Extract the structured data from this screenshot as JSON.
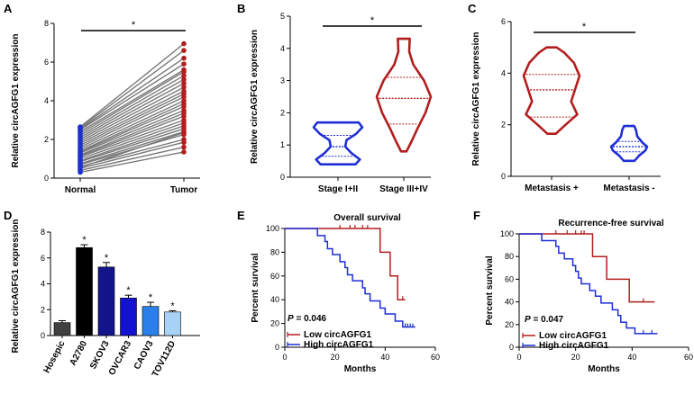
{
  "colors": {
    "blue": "#1f2fd6",
    "red": "#b21e1e",
    "axis": "#000000",
    "paired_line": "#7a7a7a",
    "bar_colors": [
      "#404040",
      "#000000",
      "#14148a",
      "#1212d0",
      "#2a7fe8",
      "#a8d2f5"
    ]
  },
  "chart_data": [
    {
      "panel": "A",
      "type": "scatter",
      "subtype": "paired before-after",
      "title": "",
      "xlabel": "",
      "ylabel": "Relative circAGFG1 expression",
      "categories": [
        "Normal",
        "Tumor"
      ],
      "ylim": [
        0,
        8
      ],
      "yticks": [
        0,
        2,
        4,
        6,
        8
      ],
      "significance": "*",
      "pairs": [
        [
          0.3,
          1.35
        ],
        [
          0.4,
          1.6
        ],
        [
          0.5,
          1.85
        ],
        [
          0.6,
          2.0
        ],
        [
          0.7,
          2.25
        ],
        [
          0.75,
          2.4
        ],
        [
          0.85,
          2.55
        ],
        [
          0.9,
          2.7
        ],
        [
          1.0,
          2.85
        ],
        [
          1.1,
          3.0
        ],
        [
          1.15,
          3.2
        ],
        [
          1.2,
          3.35
        ],
        [
          1.3,
          3.5
        ],
        [
          1.35,
          3.7
        ],
        [
          1.4,
          3.85
        ],
        [
          1.5,
          4.0
        ],
        [
          1.6,
          4.2
        ],
        [
          1.7,
          4.35
        ],
        [
          1.8,
          4.5
        ],
        [
          1.9,
          4.7
        ],
        [
          2.0,
          4.9
        ],
        [
          2.1,
          5.1
        ],
        [
          2.2,
          5.3
        ],
        [
          2.3,
          5.5
        ],
        [
          2.4,
          5.6
        ],
        [
          2.5,
          5.9
        ],
        [
          2.55,
          6.2
        ],
        [
          2.6,
          6.6
        ],
        [
          2.65,
          6.95
        ],
        [
          0.55,
          2.35
        ]
      ]
    },
    {
      "panel": "B",
      "type": "violin",
      "title": "",
      "ylabel": "Relative circAGFG1 expression",
      "categories": [
        "Stage I+II",
        "Stage III+IV"
      ],
      "ylim": [
        0,
        5
      ],
      "yticks": [
        0,
        1,
        2,
        3,
        4,
        5
      ],
      "significance": "*",
      "series": [
        {
          "name": "Stage I+II",
          "min": 0.4,
          "q1": 0.65,
          "median": 0.95,
          "q3": 1.3,
          "max": 1.7,
          "profile": [
            [
              0.4,
              0.72
            ],
            [
              0.55,
              0.9
            ],
            [
              0.75,
              0.55
            ],
            [
              0.95,
              0.3
            ],
            [
              1.15,
              0.35
            ],
            [
              1.35,
              0.75
            ],
            [
              1.55,
              1.0
            ],
            [
              1.7,
              0.85
            ]
          ]
        },
        {
          "name": "Stage III+IV",
          "min": 0.8,
          "q1": 1.65,
          "median": 2.45,
          "q3": 3.1,
          "max": 4.3,
          "profile": [
            [
              0.8,
              0.1
            ],
            [
              1.1,
              0.28
            ],
            [
              1.5,
              0.5
            ],
            [
              2.0,
              0.8
            ],
            [
              2.5,
              1.0
            ],
            [
              3.0,
              0.75
            ],
            [
              3.5,
              0.35
            ],
            [
              3.9,
              0.2
            ],
            [
              4.3,
              0.22
            ]
          ]
        }
      ]
    },
    {
      "panel": "C",
      "type": "violin",
      "title": "",
      "ylabel": "Relative circAGFG1 expression",
      "categories": [
        "Metastasis +",
        "Metastasis -"
      ],
      "ylim": [
        0,
        6
      ],
      "yticks": [
        0,
        2,
        4,
        6
      ],
      "significance": "*",
      "series": [
        {
          "name": "Metastasis +",
          "min": 1.65,
          "q1": 2.3,
          "median": 3.35,
          "q3": 3.95,
          "max": 5.0,
          "profile": [
            [
              1.65,
              0.15
            ],
            [
              2.0,
              0.5
            ],
            [
              2.4,
              0.92
            ],
            [
              2.9,
              0.7
            ],
            [
              3.4,
              0.85
            ],
            [
              3.9,
              1.0
            ],
            [
              4.4,
              0.8
            ],
            [
              4.8,
              0.45
            ],
            [
              5.0,
              0.18
            ]
          ]
        },
        {
          "name": "Metastasis -",
          "min": 0.6,
          "q1": 0.95,
          "median": 1.15,
          "q3": 1.35,
          "max": 1.95,
          "profile": [
            [
              0.6,
              0.3
            ],
            [
              0.8,
              0.55
            ],
            [
              1.0,
              0.9
            ],
            [
              1.15,
              1.0
            ],
            [
              1.3,
              0.75
            ],
            [
              1.55,
              0.45
            ],
            [
              1.8,
              0.38
            ],
            [
              1.95,
              0.28
            ]
          ]
        }
      ]
    },
    {
      "panel": "D",
      "type": "bar",
      "title": "",
      "ylabel": "Relative circAGFG1 expression",
      "categories": [
        "Hosepic",
        "A2780",
        "SKOV3",
        "OVCAR3",
        "CAOV3",
        "TOV112D"
      ],
      "values": [
        1.0,
        6.8,
        5.3,
        2.9,
        2.25,
        1.82
      ],
      "errors": [
        0.15,
        0.22,
        0.35,
        0.22,
        0.32,
        0.1
      ],
      "significance": [
        "",
        "*",
        "*",
        "*",
        "*",
        "*"
      ],
      "ylim": [
        0,
        8
      ],
      "yticks": [
        0,
        2,
        4,
        6,
        8
      ]
    },
    {
      "panel": "E",
      "type": "line",
      "subtype": "kaplan-meier",
      "title": "Overall survival",
      "xlabel": "Months",
      "ylabel": "Percent survival",
      "xlim": [
        0,
        60
      ],
      "ylim": [
        0,
        100
      ],
      "xticks": [
        0,
        20,
        40,
        60
      ],
      "yticks": [
        0,
        20,
        40,
        60,
        80,
        100
      ],
      "pvalue_label": "P",
      "pvalue_text": " = 0.046",
      "series": [
        {
          "name": "Low circAGFG1",
          "steps": [
            [
              0,
              100
            ],
            [
              38,
              100
            ],
            [
              38,
              80
            ],
            [
              42,
              80
            ],
            [
              42,
              60
            ],
            [
              45,
              60
            ],
            [
              45,
              40
            ],
            [
              48,
              40
            ]
          ],
          "censor": [
            [
              22,
              100
            ],
            [
              26,
              100
            ],
            [
              28,
              100
            ],
            [
              31,
              100
            ],
            [
              33,
              100
            ],
            [
              47,
              40
            ]
          ]
        },
        {
          "name": "High circAGFG1",
          "steps": [
            [
              0,
              100
            ],
            [
              13,
              100
            ],
            [
              13,
              94
            ],
            [
              16,
              94
            ],
            [
              16,
              89
            ],
            [
              17,
              89
            ],
            [
              17,
              83
            ],
            [
              19,
              83
            ],
            [
              19,
              78
            ],
            [
              22,
              78
            ],
            [
              22,
              72
            ],
            [
              24,
              72
            ],
            [
              24,
              67
            ],
            [
              25,
              67
            ],
            [
              25,
              61
            ],
            [
              27,
              61
            ],
            [
              27,
              56
            ],
            [
              31,
              56
            ],
            [
              31,
              50
            ],
            [
              32,
              50
            ],
            [
              32,
              45
            ],
            [
              34,
              45
            ],
            [
              34,
              39
            ],
            [
              38,
              39
            ],
            [
              38,
              33
            ],
            [
              40,
              33
            ],
            [
              40,
              28
            ],
            [
              44,
              28
            ],
            [
              44,
              22
            ],
            [
              47,
              22
            ],
            [
              47,
              17
            ],
            [
              52,
              17
            ]
          ],
          "censor": [
            [
              48,
              17
            ],
            [
              49,
              17
            ],
            [
              50,
              17
            ],
            [
              51,
              17
            ]
          ]
        }
      ]
    },
    {
      "panel": "F",
      "type": "line",
      "subtype": "kaplan-meier",
      "title": "Recurrence-free survival",
      "xlabel": "Months",
      "ylabel": "Percent survival",
      "xlim": [
        0,
        60
      ],
      "ylim": [
        0,
        100
      ],
      "xticks": [
        0,
        20,
        40,
        60
      ],
      "yticks": [
        0,
        20,
        40,
        60,
        80,
        100
      ],
      "pvalue_label": "P",
      "pvalue_text": " = 0.047",
      "series": [
        {
          "name": "Low circAGFG1",
          "steps": [
            [
              0,
              100
            ],
            [
              26,
              100
            ],
            [
              26,
              80
            ],
            [
              31,
              80
            ],
            [
              31,
              60
            ],
            [
              39,
              60
            ],
            [
              39,
              40
            ],
            [
              48,
              40
            ]
          ],
          "censor": [
            [
              13,
              100
            ],
            [
              17,
              100
            ],
            [
              20,
              100
            ],
            [
              22,
              100
            ],
            [
              23,
              100
            ],
            [
              44,
              40
            ]
          ]
        },
        {
          "name": "High circAGFG1",
          "steps": [
            [
              0,
              100
            ],
            [
              8,
              100
            ],
            [
              8,
              94
            ],
            [
              13,
              94
            ],
            [
              13,
              89
            ],
            [
              14,
              89
            ],
            [
              14,
              83
            ],
            [
              16,
              83
            ],
            [
              16,
              78
            ],
            [
              19,
              78
            ],
            [
              19,
              72
            ],
            [
              20,
              72
            ],
            [
              20,
              67
            ],
            [
              21,
              67
            ],
            [
              21,
              61
            ],
            [
              22,
              61
            ],
            [
              22,
              56
            ],
            [
              25,
              56
            ],
            [
              25,
              50
            ],
            [
              27,
              50
            ],
            [
              27,
              45
            ],
            [
              29,
              45
            ],
            [
              29,
              39
            ],
            [
              33,
              39
            ],
            [
              33,
              33
            ],
            [
              35,
              33
            ],
            [
              35,
              28
            ],
            [
              36,
              28
            ],
            [
              36,
              22
            ],
            [
              38,
              22
            ],
            [
              38,
              17
            ],
            [
              41,
              17
            ],
            [
              41,
              12
            ],
            [
              49,
              12
            ]
          ],
          "censor": [
            [
              44,
              12
            ],
            [
              47,
              12
            ]
          ]
        }
      ]
    }
  ]
}
